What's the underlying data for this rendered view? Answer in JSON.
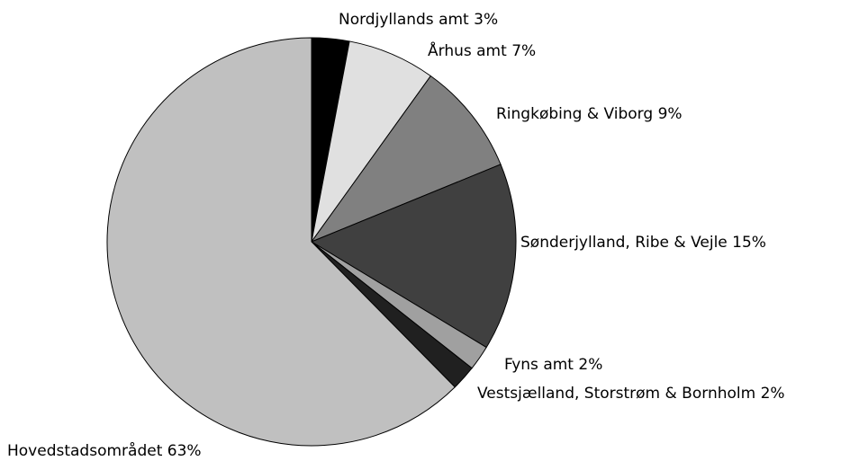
{
  "chart_data": {
    "type": "pie",
    "categories": [
      "Nordjyllands amt",
      "Århus amt",
      "Ringkøbing & Viborg",
      "Sønderjylland, Ribe & Vejle",
      "Fyns amt",
      "Vestsjælland, Storstrøm & Bornholm",
      "Hovedstadsområdet"
    ],
    "values": [
      3,
      7,
      9,
      15,
      2,
      2,
      63
    ],
    "value_labels": [
      "3%",
      "7%",
      "9%",
      "15%",
      "2%",
      "2%",
      "63%"
    ],
    "colors": [
      "#000000",
      "#e0e0e0",
      "#808080",
      "#404040",
      "#a0a0a0",
      "#202020",
      "#c0c0c0"
    ]
  }
}
